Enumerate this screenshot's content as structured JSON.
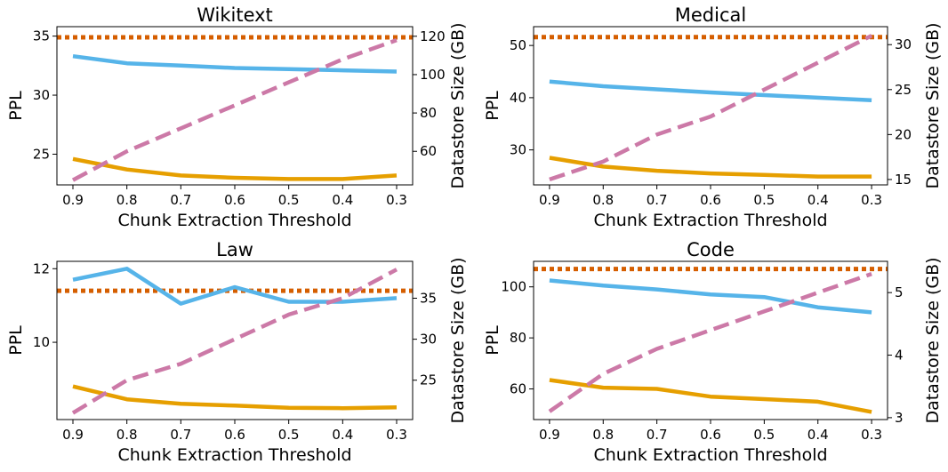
{
  "chart_data": [
    {
      "type": "line",
      "title": "Wikitext",
      "xlabel": "Chunk Extraction Threshold",
      "ylabel": "PPL",
      "y2label": "Datastore Size (GB)",
      "x": [
        0.9,
        0.8,
        0.7,
        0.6,
        0.5,
        0.4,
        0.3
      ],
      "xticks": [
        "0.9",
        "0.8",
        "0.7",
        "0.6",
        "0.5",
        "0.4",
        "0.3"
      ],
      "ylim": [
        22.4,
        35.8
      ],
      "yticks": [
        25,
        30,
        35
      ],
      "y2lim": [
        42.5,
        125
      ],
      "y2ticks": [
        60,
        80,
        100,
        120
      ],
      "baseline": 34.9,
      "series": [
        {
          "name": "PPL (blue)",
          "axis": "left",
          "color": "#56B4E9",
          "style": "solid",
          "values": [
            33.3,
            32.7,
            32.5,
            32.3,
            32.2,
            32.1,
            32.0
          ]
        },
        {
          "name": "PPL (orange)",
          "axis": "left",
          "color": "#E69F00",
          "style": "solid",
          "values": [
            24.6,
            23.7,
            23.2,
            23.0,
            22.9,
            22.9,
            23.2
          ]
        },
        {
          "name": "Datastore Size",
          "axis": "right",
          "color": "#CC79A7",
          "style": "dashed",
          "values": [
            45,
            60,
            72,
            84,
            96,
            108,
            118
          ]
        }
      ],
      "baseline_color": "#D55E00"
    },
    {
      "type": "line",
      "title": "Medical",
      "xlabel": "Chunk Extraction Threshold",
      "ylabel": "PPL",
      "y2label": "Datastore Size (GB)",
      "x": [
        0.9,
        0.8,
        0.7,
        0.6,
        0.5,
        0.4,
        0.3
      ],
      "xticks": [
        "0.9",
        "0.8",
        "0.7",
        "0.6",
        "0.5",
        "0.4",
        "0.3"
      ],
      "ylim": [
        23.3,
        53.6
      ],
      "yticks": [
        30,
        40,
        50
      ],
      "y2lim": [
        14.4,
        32
      ],
      "y2ticks": [
        15,
        20,
        25,
        30
      ],
      "baseline": 51.6,
      "series": [
        {
          "name": "PPL (blue)",
          "axis": "left",
          "color": "#56B4E9",
          "style": "solid",
          "values": [
            43.1,
            42.2,
            41.6,
            41.0,
            40.5,
            40.0,
            39.5
          ]
        },
        {
          "name": "PPL (orange)",
          "axis": "left",
          "color": "#E69F00",
          "style": "solid",
          "values": [
            28.5,
            26.8,
            26.0,
            25.5,
            25.2,
            24.9,
            24.9
          ]
        },
        {
          "name": "Datastore Size",
          "axis": "right",
          "color": "#CC79A7",
          "style": "dashed",
          "values": [
            15.0,
            17.0,
            20.0,
            22.0,
            25.0,
            28.0,
            31.0
          ]
        }
      ],
      "baseline_color": "#D55E00"
    },
    {
      "type": "line",
      "title": "Law",
      "xlabel": "Chunk Extraction Threshold",
      "ylabel": "PPL",
      "y2label": "Datastore Size (GB)",
      "x": [
        0.9,
        0.8,
        0.7,
        0.6,
        0.5,
        0.4,
        0.3
      ],
      "xticks": [
        "0.9",
        "0.8",
        "0.7",
        "0.6",
        "0.5",
        "0.4",
        "0.3"
      ],
      "ylim": [
        7.9,
        12.2
      ],
      "yticks": [
        10,
        12
      ],
      "y2lim": [
        20.2,
        39.5
      ],
      "y2ticks": [
        25,
        30,
        35
      ],
      "baseline": 11.4,
      "series": [
        {
          "name": "PPL (blue)",
          "axis": "left",
          "color": "#56B4E9",
          "style": "solid",
          "values": [
            11.7,
            12.0,
            11.05,
            11.5,
            11.1,
            11.1,
            11.2
          ]
        },
        {
          "name": "PPL (orange)",
          "axis": "left",
          "color": "#E69F00",
          "style": "solid",
          "values": [
            8.8,
            8.45,
            8.33,
            8.28,
            8.22,
            8.21,
            8.23
          ]
        },
        {
          "name": "Datastore Size",
          "axis": "right",
          "color": "#CC79A7",
          "style": "dashed",
          "values": [
            21.0,
            25.0,
            27.0,
            30.0,
            33.0,
            35.0,
            38.5
          ]
        }
      ],
      "baseline_color": "#D55E00"
    },
    {
      "type": "line",
      "title": "Code",
      "xlabel": "Chunk Extraction Threshold",
      "ylabel": "PPL",
      "y2label": "Datastore Size (GB)",
      "x": [
        0.9,
        0.8,
        0.7,
        0.6,
        0.5,
        0.4,
        0.3
      ],
      "xticks": [
        "0.9",
        "0.8",
        "0.7",
        "0.6",
        "0.5",
        "0.4",
        "0.3"
      ],
      "ylim": [
        48,
        110
      ],
      "yticks": [
        60,
        80,
        100
      ],
      "y2lim": [
        2.97,
        5.5
      ],
      "y2ticks": [
        3,
        4,
        5
      ],
      "baseline": 107,
      "series": [
        {
          "name": "PPL (blue)",
          "axis": "left",
          "color": "#56B4E9",
          "style": "solid",
          "values": [
            102.5,
            100.5,
            99.0,
            97.0,
            96.0,
            92.0,
            90.0
          ]
        },
        {
          "name": "PPL (orange)",
          "axis": "left",
          "color": "#E69F00",
          "style": "solid",
          "values": [
            63.5,
            60.5,
            60.0,
            57.0,
            56.0,
            55.0,
            51.0
          ]
        },
        {
          "name": "Datastore Size",
          "axis": "right",
          "color": "#CC79A7",
          "style": "dashed",
          "values": [
            3.1,
            3.7,
            4.1,
            4.4,
            4.7,
            5.0,
            5.3
          ]
        }
      ],
      "baseline_color": "#D55E00"
    }
  ]
}
